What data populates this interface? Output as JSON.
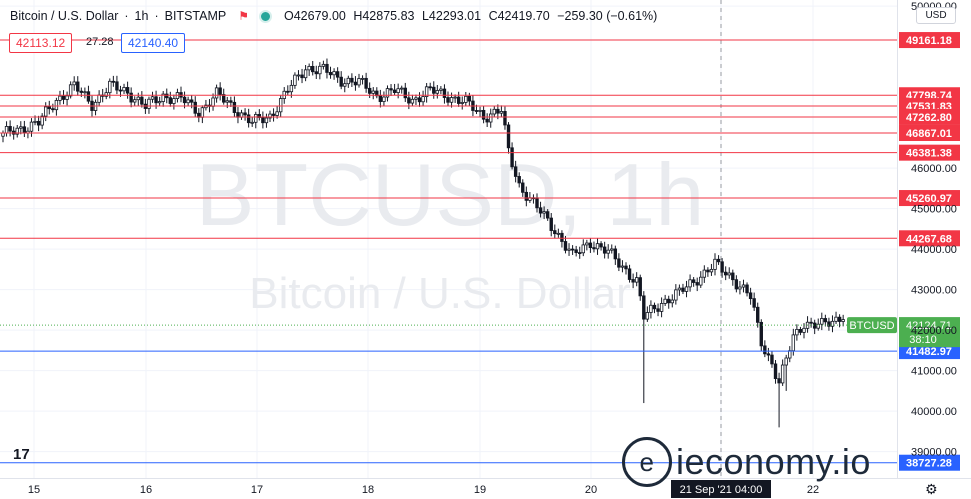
{
  "header": {
    "symbol": "Bitcoin / U.S. Dollar",
    "interval": "1h",
    "exchange": "BITSTAMP",
    "open": "O42679.00",
    "high": "H42875.83",
    "low": "L42293.01",
    "close": "C42419.70",
    "change": "−259.30 (−0.61%)"
  },
  "quote": {
    "bid": "42113.12",
    "spread": "27.28",
    "ask": "42140.40"
  },
  "currency_button": "USD",
  "logo_text": "ieconomy.io",
  "icons": {
    "flag": "flag-icon",
    "status": "market-status-dot",
    "settings": "gear-icon",
    "tv": "tradingview-logo"
  },
  "colors": {
    "up": "#26a69a",
    "down": "#ef5350",
    "resistance": "#f23645",
    "support": "#2962ff",
    "price": "#4caf50"
  },
  "chart_data": {
    "type": "candlestick",
    "watermark": [
      "BTCUSD, 1h",
      "Bitcoin / U.S. Dollar"
    ],
    "x_ticks": [
      "15",
      "16",
      "17",
      "18",
      "19",
      "20",
      "21 Sep '21  04:00",
      "22"
    ],
    "y_ticks": [
      50000,
      46000,
      45000,
      44000,
      43000,
      42000,
      41000,
      40000,
      39000
    ],
    "ylim": [
      38350,
      50150
    ],
    "grid": true,
    "horizontal_levels": [
      {
        "value": 49161.18,
        "label": "49161.18",
        "type": "resistance"
      },
      {
        "value": 47798.74,
        "label": "47798.74",
        "type": "resistance"
      },
      {
        "value": 47531.83,
        "label": "47531.83",
        "type": "resistance"
      },
      {
        "value": 47262.8,
        "label": "47262.80",
        "type": "resistance"
      },
      {
        "value": 46867.01,
        "label": "46867.01",
        "type": "resistance"
      },
      {
        "value": 46381.38,
        "label": "46381.38",
        "type": "resistance"
      },
      {
        "value": 45260.97,
        "label": "45260.97",
        "type": "resistance"
      },
      {
        "value": 44267.68,
        "label": "44267.68",
        "type": "resistance"
      },
      {
        "value": 41482.97,
        "label": "41482.97",
        "type": "support"
      },
      {
        "value": 38727.28,
        "label": "38727.28",
        "type": "support"
      }
    ],
    "last_price": {
      "value": 42124.71,
      "label": "42124.71",
      "countdown": "38:10",
      "name": "BTCUSD"
    },
    "close_path": [
      [
        0,
        46800
      ],
      [
        5,
        47000
      ],
      [
        10,
        47100
      ],
      [
        15,
        47700
      ],
      [
        20,
        48000
      ],
      [
        25,
        47600
      ],
      [
        30,
        48000
      ],
      [
        35,
        47900
      ],
      [
        40,
        47500
      ],
      [
        45,
        47800
      ],
      [
        50,
        47700
      ],
      [
        55,
        47400
      ],
      [
        60,
        47800
      ],
      [
        65,
        47500
      ],
      [
        70,
        47100
      ],
      [
        75,
        47300
      ],
      [
        80,
        47900
      ],
      [
        85,
        48500
      ],
      [
        90,
        48400
      ],
      [
        95,
        48200
      ],
      [
        100,
        48100
      ],
      [
        105,
        47800
      ],
      [
        110,
        47900
      ],
      [
        115,
        47700
      ],
      [
        120,
        47900
      ],
      [
        125,
        47800
      ],
      [
        130,
        47600
      ],
      [
        135,
        47300
      ],
      [
        140,
        47400
      ],
      [
        142,
        46400
      ],
      [
        145,
        45600
      ],
      [
        150,
        45000
      ],
      [
        155,
        44500
      ],
      [
        160,
        43800
      ],
      [
        165,
        44200
      ],
      [
        170,
        43900
      ],
      [
        175,
        43500
      ],
      [
        178,
        43200
      ],
      [
        180,
        42300
      ],
      [
        185,
        42700
      ],
      [
        190,
        42900
      ],
      [
        195,
        43300
      ],
      [
        200,
        43600
      ],
      [
        205,
        43300
      ],
      [
        210,
        42800
      ],
      [
        213,
        41700
      ],
      [
        216,
        41200
      ],
      [
        218,
        40700
      ],
      [
        222,
        41800
      ],
      [
        225,
        42200
      ],
      [
        230,
        42100
      ],
      [
        233,
        42200
      ],
      [
        236,
        42420
      ]
    ],
    "extremes": [
      {
        "i": 180,
        "low": 40200
      },
      {
        "i": 218,
        "low": 39600
      },
      {
        "i": 220,
        "low": 40500
      }
    ]
  }
}
